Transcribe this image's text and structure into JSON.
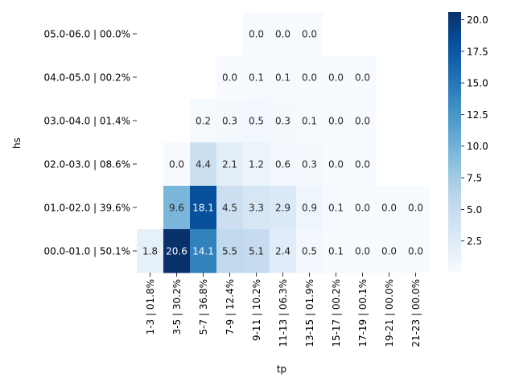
{
  "chart_data": {
    "type": "heatmap",
    "title": "",
    "xlabel": "tp",
    "ylabel": "hs",
    "x_categories": [
      "1-3 | 01.8%",
      "3-5 | 30.2%",
      "5-7 | 36.8%",
      "7-9 | 12.4%",
      "9-11 | 10.2%",
      "11-13 | 06.3%",
      "13-15 | 01.9%",
      "15-17 | 00.2%",
      "17-19 | 00.1%",
      "19-21 | 00.0%",
      "21-23 | 00.0%"
    ],
    "y_categories": [
      "05.0-06.0 | 00.0%",
      "04.0-05.0 | 00.2%",
      "03.0-04.0 | 01.4%",
      "02.0-03.0 | 08.6%",
      "01.0-02.0 | 39.6%",
      "00.0-01.0 | 50.1%"
    ],
    "values": [
      [
        null,
        null,
        null,
        null,
        0.0,
        0.0,
        0.0,
        null,
        null,
        null,
        null
      ],
      [
        null,
        null,
        null,
        0.0,
        0.1,
        0.1,
        0.0,
        0.0,
        0.0,
        null,
        null
      ],
      [
        null,
        null,
        0.2,
        0.3,
        0.5,
        0.3,
        0.1,
        0.0,
        0.0,
        null,
        null
      ],
      [
        null,
        0.0,
        4.4,
        2.1,
        1.2,
        0.6,
        0.3,
        0.0,
        0.0,
        null,
        null
      ],
      [
        null,
        9.6,
        18.1,
        4.5,
        3.3,
        2.9,
        0.9,
        0.1,
        0.0,
        0.0,
        0.0
      ],
      [
        1.8,
        20.6,
        14.1,
        5.5,
        5.1,
        2.4,
        0.5,
        0.1,
        0.0,
        0.0,
        0.0
      ]
    ],
    "colormap": "Blues",
    "vmin": 0.0,
    "vmax": 20.6,
    "colorbar_ticks": [
      2.5,
      5.0,
      7.5,
      10.0,
      12.5,
      15.0,
      17.5,
      20.0
    ],
    "colorbar_tick_labels": [
      "2.5",
      "5.0",
      "7.5",
      "10.0",
      "12.5",
      "15.0",
      "17.5",
      "20.0"
    ],
    "grid": false
  }
}
